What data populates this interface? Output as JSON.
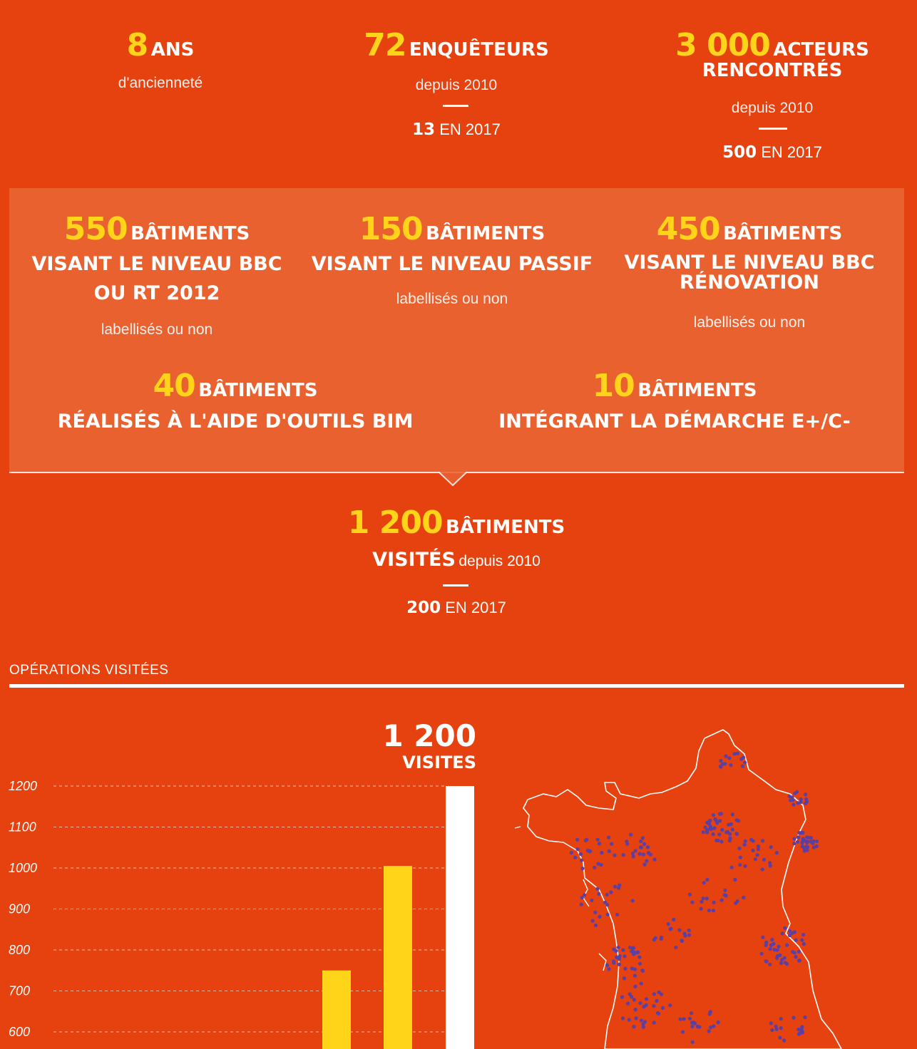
{
  "stats_top": [
    {
      "number": "8",
      "unit": "ANS",
      "unit2": "",
      "sub": "d'ancienneté",
      "year_number": "",
      "year_text": ""
    },
    {
      "number": "72",
      "unit": "ENQUÊTEURS",
      "unit2": "",
      "sub": "depuis 2010",
      "year_number": "13",
      "year_text": "EN 2017"
    },
    {
      "number": "3 000",
      "unit": "ACTEURS",
      "unit2": "RENCONTRÉS",
      "sub": "depuis 2010",
      "year_number": "500",
      "year_text": "EN 2017"
    }
  ],
  "buildings_row1": [
    {
      "number": "550",
      "unit": "BÂTIMENTS",
      "desc": "VISANT LE NIVEAU BBC",
      "desc2": "OU RT 2012",
      "note": "labellisés ou non"
    },
    {
      "number": "150",
      "unit": "BÂTIMENTS",
      "desc": "VISANT LE NIVEAU PASSIF",
      "desc2": "",
      "note": "labellisés ou non"
    },
    {
      "number": "450",
      "unit": "BÂTIMENTS",
      "desc": "VISANT LE NIVEAU BBC",
      "desc2": "RÉNOVATION",
      "note": "labellisés ou non"
    }
  ],
  "buildings_row2": [
    {
      "number": "40",
      "unit": "BÂTIMENTS",
      "desc": "RÉALISÉS À L'AIDE D'OUTILS BIM"
    },
    {
      "number": "10",
      "unit": "BÂTIMENTS",
      "desc": "INTÉGRANT LA DÉMARCHE E+/C-"
    }
  ],
  "total": {
    "number": "1 200",
    "unit": "BÂTIMENTS",
    "visited": "VISITÉS",
    "since": "depuis 2010",
    "year_number": "200",
    "year_text": "EN 2017"
  },
  "section_title": "OPÉRATIONS VISITÉES",
  "chart_annotation": {
    "number": "1 200",
    "label": "VISITES"
  },
  "colors": {
    "background": "#e5420f",
    "accent": "#ffd419",
    "band": "#ea6130",
    "dots": "#5b3fa3"
  },
  "chart_data": {
    "type": "bar",
    "ylim": [
      550,
      1200
    ],
    "yticks": [
      1200,
      1100,
      1000,
      900,
      800,
      700,
      600
    ],
    "ytick_labels": [
      "1200",
      "1100",
      "1000",
      "900",
      "800",
      "700",
      "600"
    ],
    "values": [
      750,
      1005,
      1200
    ],
    "bar_colors": [
      "#ffd419",
      "#ffd419",
      "#ffffff"
    ],
    "grid": true
  }
}
